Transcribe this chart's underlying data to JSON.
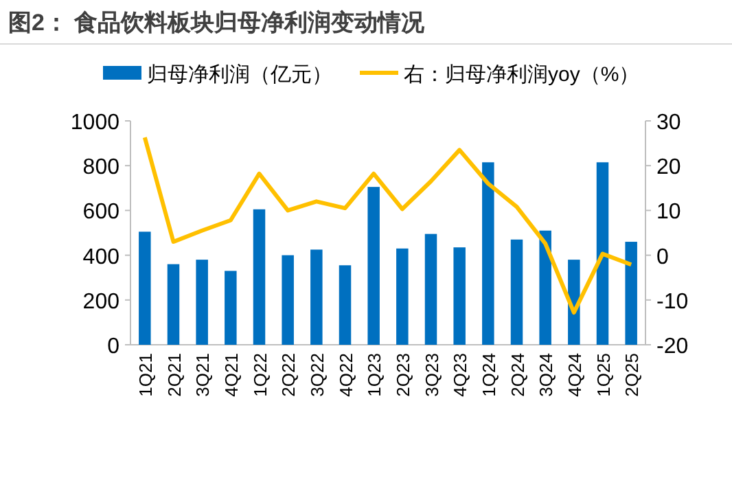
{
  "chart_data": {
    "type": "bar",
    "title": "图2： 食品饮料板块归母净利润变动情况",
    "categories": [
      "1Q21",
      "2Q21",
      "3Q21",
      "4Q21",
      "1Q22",
      "2Q22",
      "3Q22",
      "4Q22",
      "1Q23",
      "2Q23",
      "3Q23",
      "4Q23",
      "1Q24",
      "2Q24",
      "3Q24",
      "4Q24",
      "1Q25",
      "2Q25"
    ],
    "series": [
      {
        "name": "归母净利润（亿元）",
        "color": "#0070c0",
        "values": [
          505,
          360,
          380,
          330,
          605,
          400,
          425,
          355,
          705,
          430,
          495,
          435,
          815,
          470,
          510,
          380,
          815,
          460
        ]
      },
      {
        "name": "右：归母净利润yoy（%）",
        "type": "line",
        "axis": "y2",
        "color": "#ffc000",
        "values": [
          26.3,
          3.0,
          5.5,
          7.8,
          18.2,
          10.0,
          12.0,
          10.5,
          18.2,
          10.3,
          16.5,
          23.5,
          16.0,
          10.8,
          2.6,
          -12.8,
          0.3,
          -2.1
        ]
      }
    ],
    "ylim": [
      0,
      1000
    ],
    "yticks": [
      0,
      200,
      400,
      600,
      800,
      1000
    ],
    "y2lim": [
      -20,
      30
    ],
    "y2ticks": [
      -20,
      -10,
      0,
      10,
      20,
      30
    ],
    "legend": "top",
    "grid": false
  }
}
